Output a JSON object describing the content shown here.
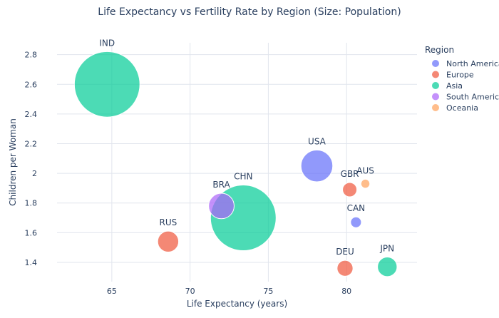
{
  "chart_data": {
    "type": "scatter",
    "title": "Life Expectancy vs Fertility Rate by Region (Size: Population)",
    "xlabel": "Life Expectancy (years)",
    "ylabel": "Children per Woman",
    "xlim": [
      61.5,
      84.5
    ],
    "ylim": [
      1.27,
      2.88
    ],
    "xticks": [
      65,
      70,
      75,
      80
    ],
    "xtick_labels": [
      "65",
      "70",
      "75",
      "80"
    ],
    "yticks": [
      1.4,
      1.6,
      1.8,
      2.0,
      2.2,
      2.4,
      2.6,
      2.8
    ],
    "ytick_labels": [
      "1.4",
      "1.6",
      "1.8",
      "2",
      "2.2",
      "2.4",
      "2.6",
      "2.8"
    ],
    "grid": true,
    "legend_title": "Region",
    "legend_position": "top-right",
    "series": [
      {
        "name": "North America",
        "color": "#636efa"
      },
      {
        "name": "Europe",
        "color": "#ef553b"
      },
      {
        "name": "Asia",
        "color": "#00cc96"
      },
      {
        "name": "South America",
        "color": "#ab63fa"
      },
      {
        "name": "Oceania",
        "color": "#ffa15a"
      }
    ],
    "points": [
      {
        "label": "CHN",
        "region": "Asia",
        "x": 73.4,
        "y": 1.7,
        "population": 1412
      },
      {
        "label": "IND",
        "region": "Asia",
        "x": 64.7,
        "y": 2.6,
        "population": 1408
      },
      {
        "label": "USA",
        "region": "North America",
        "x": 78.1,
        "y": 2.05,
        "population": 332
      },
      {
        "label": "BRA",
        "region": "South America",
        "x": 72.0,
        "y": 1.78,
        "population": 214
      },
      {
        "label": "RUS",
        "region": "Europe",
        "x": 68.6,
        "y": 1.54,
        "population": 144
      },
      {
        "label": "JPN",
        "region": "Asia",
        "x": 82.6,
        "y": 1.37,
        "population": 125
      },
      {
        "label": "DEU",
        "region": "Europe",
        "x": 79.9,
        "y": 1.36,
        "population": 83
      },
      {
        "label": "GBR",
        "region": "Europe",
        "x": 80.2,
        "y": 1.89,
        "population": 67
      },
      {
        "label": "CAN",
        "region": "North America",
        "x": 80.6,
        "y": 1.67,
        "population": 38
      },
      {
        "label": "AUS",
        "region": "Oceania",
        "x": 81.2,
        "y": 1.93,
        "population": 26
      }
    ]
  }
}
